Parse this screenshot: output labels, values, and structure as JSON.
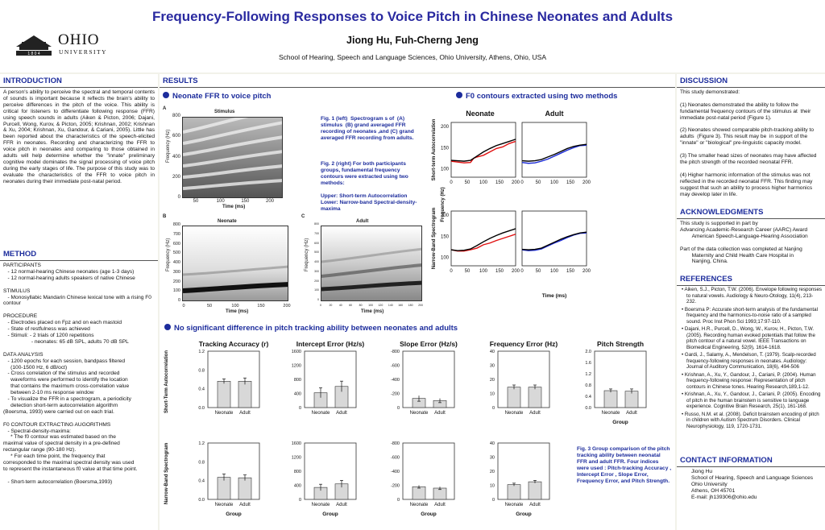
{
  "header": {
    "title": "Frequency-Following Responses to Voice Pitch in Chinese Neonates and Adults",
    "authors": "Jiong Hu, Fuh-Cherng Jeng",
    "affiliation": "School of Hearing, Speech and Language Sciences, Ohio University, Athens, Ohio, USA",
    "logo_word": "OHIO",
    "logo_sub": "UNIVERSITY",
    "logo_year": "1 8 0 4"
  },
  "intro": {
    "heading": "INTRODUCTION",
    "text": "A person's ability to perceive the spectral and temporal contents of sounds is important because it reflects the brain's ability to perceive differences in the pitch of the voice. This ability is critical for listeners to differentiate following response (FFR) using speech sounds in adults (Aiken & Picton, 2006; Dajani, Purcell, Wong, Kurov, & Picton, 2005; Krishnan, 2002; Krishnan & Xu, 2004; Krishnan, Xu, Gandour, & Cariani, 2005). Little has been reported about the characteristics of the speech-elicited FFR in neonates. Recording and characterizing the FFR to voice pitch in neonates and comparing to those obtained in adults will help determine whether the \"innate\" preliminary cognitive model dominates the signal processing of voice pitch during the early stages of life. The purpose of this study was to evaluate the characteristics of the FFR to voice pitch in neonates during their immediate post-natal period."
  },
  "method": {
    "heading": "METHOD",
    "text": "PARTICIPANTS\n   - 12 normal-hearing Chinese neonates (age 1-3 days)\n   - 12 normal-hearing adults speakers of native Chinese\n\nSTIMULUS\n   - Monosyllabic Mandarin Chinese lexical tone with a rising F0 contour\n\nPROCEDURE\n   - Electrodes placed on Fpz and on each mastoid\n   - State of restfulness was achieved\n   - Stimuli: - 2 trials of 1200 repetitions\n                   - neonates: 65 dB SPL, adults 70 dB SPL\n\nDATA ANALYSIS\n   - 1200 epochs for each session, bandpass filtered\n     (100-1500 Hz, 6 dB/oct)\n   - Cross correlation of the stimulus and recorded\n     waveforms were performed to identify the location\n     that contains the maximum cross-correlation value\n     between 2-10 ms response window\n   - To visualize the FFR in a spectrogram, a periodicity\n     detection short-term autocorrelation algorithm\n(Boersma, 1993) were carried out on each trial.\n\nF0 CONTOUR EXTRACTING AUGORITHMS\n   - Spectral-density-maxima:\n     * The f0 contour was estimated based on the\nmaximal value of spectral density in a pre-defined\nrectangular range (90-180 Hz).\n     * For each time point, the frequency that\ncorresponded to the maximal spectral density was used\nto represent the instantaneous f0 value at that time point.\n\n   - Short-term autocorrelation (Boersma,1993)"
  },
  "results": {
    "heading": "RESULTS",
    "sub1": "Neonate FFR to voice pitch",
    "sub2": "F0 contours extracted using two methods",
    "sub3": "No significant difference in pitch tracking ability between neonates and adults",
    "fig1_text": "Fig. 1 (left)  Spectrogram s of  (A) stimulus  (B) grand averaged FFR recording of neonates ,and (C) grand averaged FFR recording from adults.",
    "fig2_text": "Fig. 2 (right) For both participants groups, fundamental frequency contours were extracted using two methods:\n\nUpper: Short-term Autocorrelation\nLower: Narrow-band Spectral-density-maxima",
    "fig3_text": "Fig. 3 Group comparison of the pitch tracking ability between neonatal FFR and adult FFR. Four indices were used : Pitch-tracking Accuracy , Intercept Error , Slope Error, Frequency Error, and Pitch Strength.",
    "specA": {
      "letter": "A",
      "title": "Stimulus",
      "ylabel": "Frequency (Hz)",
      "xlabel": "Time (ms)",
      "yticks": [
        "800",
        "600",
        "400",
        "200",
        "0"
      ],
      "xticks": [
        "50",
        "100",
        "150",
        "200"
      ]
    },
    "specB": {
      "letter": "B",
      "title": "Neonate",
      "ylabel": "Frequency (Hz)",
      "xlabel": "Time (ms)",
      "yticks": [
        "800",
        "700",
        "600",
        "500",
        "400",
        "300",
        "200",
        "100",
        "0"
      ],
      "xticks": [
        "0",
        "50",
        "100",
        "150",
        "200"
      ]
    },
    "specC": {
      "letter": "C",
      "title": "Adult",
      "ylabel": "Frequency (Hz)",
      "xlabel": "Time (ms)",
      "yticks": [
        "800",
        "700",
        "600",
        "500",
        "400",
        "300",
        "200",
        "100",
        "0"
      ],
      "xticks": [
        "0",
        "20",
        "40",
        "60",
        "80",
        "100",
        "120",
        "140",
        "160",
        "180",
        "200"
      ]
    },
    "fig2": {
      "col_titles": [
        "Neonate",
        "Adult"
      ],
      "row_labels": [
        "Short-term Autocorrelation",
        "Narrow-Band Spectrogram"
      ],
      "ylabel": "Frequency (Hz)",
      "xlabel": "Time (ms)",
      "yticks": [
        "200",
        "150",
        "100"
      ],
      "xticks": [
        "0",
        "50",
        "100",
        "150",
        "200"
      ]
    },
    "fig3": {
      "row_labels": [
        "Short-Term Autocorrelation",
        "Narrow-Band Spectrogram"
      ],
      "group_label": "Group",
      "cat_labels": [
        "Neonate",
        "Adult"
      ]
    }
  },
  "discussion": {
    "heading": "DISCUSSION",
    "text": "This study demonstrated:\n\n(1) Neonates demonstrated the ability to follow the fundamental frequency contours of the stimulus at  their immediate post-natal period (Figure 1).\n\n(2) Neonates showed comparable pitch-tracking ability to adults  (Figure 3). This result may be  in support of the \"innate\" or \"biological\" pre-linguistic capacity model.\n\n(3) The smaller head sizes of neonates may have affected the pitch strength of the recorded neonatal FFR.\n\n(4) Higher harmonic information of the stimulus was not reflected in the recorded neonatal FFR. This finding may suggest that such an ability to process higher harmonics may develop later in life."
  },
  "ack": {
    "heading": "ACKNOWLEDGMENTS",
    "text": "This study is supported in part by\nAdvancing Academic-Research Career (AARC) Award\n        American Speech-Language-Hearing Association\n\nPart of the data collection was completed at Nanjing\n        Maternity and Child Health Care Hospital in\n        Nanjing, China."
  },
  "refs": {
    "heading": "REFERENCES",
    "items": [
      "Aiken, S.J., Picton, T.W. (2006). Envelope following responses to natural vowels. Audiology & Neuro-Otology, 11(4), 213-232.",
      "Boersma P: Accurate short-term analysis of the fundamental frequency and the harmonics-to-noise ratio of a sampled sound. Proc Inst Phon Sci 1993;17:97-110.",
      "Dajani, H.R., Purcell, D., Wong, W., Kurov, H., Picton, T.W. (2005). Recording human evoked potentials that follow the pitch contour of a natural vowel. IEEE Transactions on Biomedical Engineering, 52(9), 1614-1618.",
      "Gardi, J., Salamy, A., Mendelson, T. (1979). Scalp-recorded frequency-following responses in neonates. Audiology: Journal of Auditory Communication, 18(6), 494-506",
      "Krishnan, A., Xu, Y., Gandour, J., Cariani, P. (2004). Human frequency-following response: Representation of pitch contours in Chinese tones. Hearing Research,189,1-12.",
      "Krishnan, A., Xu, Y., Gandour, J., Cariani, P. (2005). Encoding of pitch in the human brainstem is sensitive to language experience. Cognitive Brain Research, 25(1), 161-168.",
      "Russo, N.M. et al. (2008).  Deficit brainstem encoding of pitch in children with Autism Spectrum Disorders. Clinical Neurophysiology, 119, 1720-1731."
    ]
  },
  "contact": {
    "heading": "CONTACT INFORMATION",
    "text": "Jiong Hu\nSchool of Hearing, Speech and Language Sciences\nOhio University\nAthens, OH 45701\nE-mail: jh139306@ohio.edu"
  },
  "colors": {
    "title": "#2a2aa0",
    "heading": "#1c2c9c",
    "neonate": "#e01010",
    "adult": "#1a2ad8",
    "contour": "#000000"
  },
  "chart_data": [
    {
      "type": "line",
      "panel": "Neonate / Short-term Autocorrelation",
      "xlim": [
        0,
        200
      ],
      "ylim": [
        80,
        210
      ],
      "series": [
        {
          "color": "#e01010",
          "x": [
            0,
            20,
            40,
            60,
            70,
            80,
            100,
            120,
            140,
            160,
            180,
            200
          ],
          "y": [
            118,
            116,
            114,
            115,
            125,
            128,
            132,
            140,
            148,
            152,
            160,
            165
          ]
        },
        {
          "color": "#000000",
          "x": [
            0,
            20,
            40,
            60,
            80,
            100,
            120,
            140,
            160,
            180,
            200
          ],
          "y": [
            120,
            119,
            118,
            120,
            130,
            140,
            148,
            155,
            160,
            165,
            170
          ]
        }
      ]
    },
    {
      "type": "line",
      "panel": "Adult / Short-term Autocorrelation",
      "xlim": [
        0,
        200
      ],
      "ylim": [
        80,
        210
      ],
      "series": [
        {
          "color": "#1a2ad8",
          "x": [
            0,
            20,
            40,
            60,
            80,
            100,
            120,
            140,
            160,
            180,
            200
          ],
          "y": [
            115,
            113,
            114,
            118,
            123,
            130,
            137,
            144,
            150,
            155,
            156
          ]
        },
        {
          "color": "#000000",
          "x": [
            0,
            20,
            40,
            60,
            80,
            100,
            120,
            140,
            160,
            180,
            200
          ],
          "y": [
            119,
            118,
            119,
            122,
            128,
            134,
            141,
            148,
            153,
            156,
            158
          ]
        }
      ]
    },
    {
      "type": "line",
      "panel": "Neonate / Narrow-Band Spectrogram",
      "xlim": [
        0,
        200
      ],
      "ylim": [
        80,
        210
      ],
      "series": [
        {
          "color": "#e01010",
          "x": [
            0,
            20,
            40,
            60,
            80,
            100,
            120,
            140,
            160,
            180,
            200
          ],
          "y": [
            118,
            115,
            115,
            118,
            122,
            130,
            134,
            140,
            145,
            150,
            155
          ]
        },
        {
          "color": "#000000",
          "x": [
            0,
            20,
            40,
            60,
            80,
            100,
            120,
            140,
            160,
            180,
            200
          ],
          "y": [
            118,
            116,
            117,
            120,
            128,
            137,
            145,
            152,
            158,
            163,
            168
          ]
        }
      ]
    },
    {
      "type": "line",
      "panel": "Adult / Narrow-Band Spectrogram",
      "xlim": [
        0,
        200
      ],
      "ylim": [
        80,
        210
      ],
      "series": [
        {
          "color": "#1a2ad8",
          "x": [
            0,
            20,
            40,
            60,
            80,
            100,
            120,
            140,
            160,
            180,
            200
          ],
          "y": [
            118,
            116,
            117,
            120,
            127,
            134,
            140,
            147,
            153,
            157,
            158
          ]
        },
        {
          "color": "#000000",
          "x": [
            0,
            20,
            40,
            60,
            80,
            100,
            120,
            140,
            160,
            180,
            200
          ],
          "y": [
            119,
            118,
            119,
            122,
            129,
            136,
            143,
            149,
            154,
            158,
            160
          ]
        }
      ]
    },
    {
      "type": "bar",
      "title": "Tracking Accuracy (r)",
      "row": "Short-Term Autocorrelation",
      "categories": [
        "Neonate",
        "Adult"
      ],
      "values": [
        0.56,
        0.56
      ],
      "errors": [
        0.05,
        0.07
      ],
      "ylim": [
        0,
        1.2
      ],
      "yticks": [
        "1.2",
        "0.8",
        "0.4",
        "0.0"
      ]
    },
    {
      "type": "bar",
      "title": "Intercept Error (Hz/s)",
      "row": "Short-Term Autocorrelation",
      "categories": [
        "Neonate",
        "Adult"
      ],
      "values": [
        420,
        600
      ],
      "errors": [
        140,
        150
      ],
      "ylim": [
        0,
        1600
      ],
      "yticks": [
        "1600",
        "1200",
        "800",
        "400",
        "0"
      ]
    },
    {
      "type": "bar",
      "title": "Slope Error (Hz/s)",
      "row": "Short-Term Autocorrelation",
      "categories": [
        "Neonate",
        "Adult"
      ],
      "values": [
        -130,
        -100
      ],
      "errors": [
        40,
        30
      ],
      "ylim": [
        0,
        -800
      ],
      "yticks": [
        "-800",
        "-600",
        "-400",
        "-200",
        "0"
      ]
    },
    {
      "type": "bar",
      "title": "Frequency Error (Hz)",
      "row": "Short-Term Autocorrelation",
      "categories": [
        "Neonate",
        "Adult"
      ],
      "values": [
        14.5,
        14.5
      ],
      "errors": [
        1.5,
        1.5
      ],
      "ylim": [
        0,
        40
      ],
      "yticks": [
        "40",
        "30",
        "20",
        "10",
        "0"
      ]
    },
    {
      "type": "bar",
      "title": "Pitch Strength",
      "row": "Short-Term Autocorrelation",
      "categories": [
        "Neonate",
        "Adult"
      ],
      "values": [
        0.6,
        0.58
      ],
      "errors": [
        0.06,
        0.08
      ],
      "ylim": [
        0,
        2.0
      ],
      "yticks": [
        "2.0",
        "1.6",
        "1.2",
        "0.8",
        "0.4",
        "0.0"
      ]
    },
    {
      "type": "bar",
      "row": "Narrow-Band Spectrogram",
      "categories": [
        "Neonate",
        "Adult"
      ],
      "values": [
        0.47,
        0.46
      ],
      "errors": [
        0.07,
        0.06
      ],
      "ylim": [
        0,
        1.2
      ],
      "yticks": [
        "1.2",
        "0.8",
        "0.4",
        "0.0"
      ]
    },
    {
      "type": "bar",
      "row": "Narrow-Band Spectrogram",
      "categories": [
        "Neonate",
        "Adult"
      ],
      "values": [
        340,
        440
      ],
      "errors": [
        90,
        100
      ],
      "ylim": [
        0,
        1600
      ],
      "yticks": [
        "1600",
        "1200",
        "800",
        "400",
        "0"
      ]
    },
    {
      "type": "bar",
      "row": "Narrow-Band Spectrogram",
      "categories": [
        "Neonate",
        "Adult"
      ],
      "values": [
        -180,
        -160
      ],
      "errors": [
        20,
        20
      ],
      "ylim": [
        0,
        -800
      ],
      "yticks": [
        "-800",
        "-600",
        "-400",
        "-200",
        "0"
      ]
    },
    {
      "type": "bar",
      "row": "Narrow-Band Spectrogram",
      "categories": [
        "Neonate",
        "Adult"
      ],
      "values": [
        10.5,
        12.5
      ],
      "errors": [
        1,
        1
      ],
      "ylim": [
        0,
        40
      ],
      "yticks": [
        "40",
        "30",
        "20",
        "10",
        "0"
      ]
    }
  ]
}
